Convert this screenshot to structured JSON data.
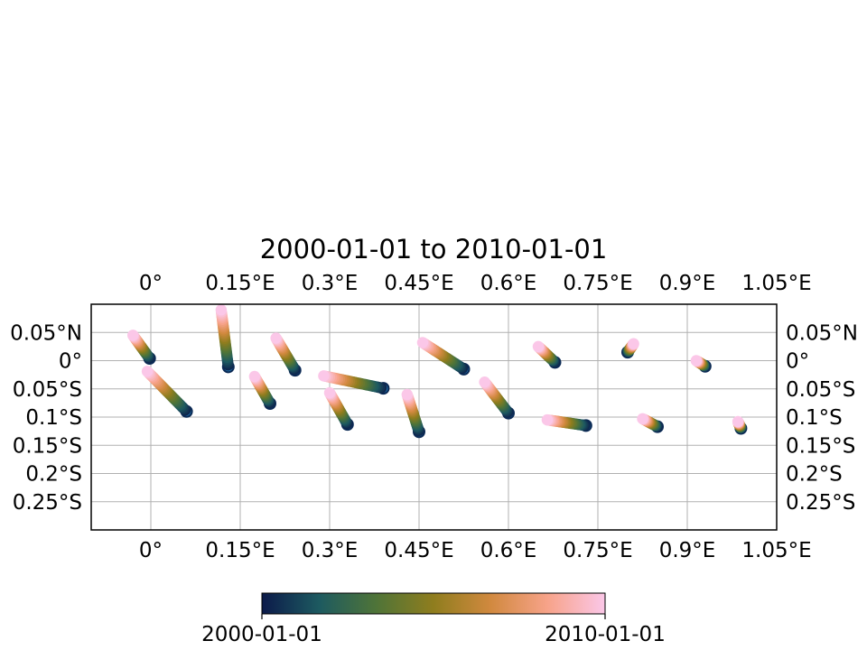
{
  "chart_data": {
    "type": "scatter",
    "title": "2000-01-01 to 2010-01-01",
    "xlabel": "",
    "ylabel": "",
    "xlim": [
      -0.1,
      1.05
    ],
    "ylim": [
      -0.3,
      0.1
    ],
    "grid": true,
    "x_ticks": [
      {
        "value": 0.0,
        "label": "0°"
      },
      {
        "value": 0.15,
        "label": "0.15°E"
      },
      {
        "value": 0.3,
        "label": "0.3°E"
      },
      {
        "value": 0.45,
        "label": "0.45°E"
      },
      {
        "value": 0.6,
        "label": "0.6°E"
      },
      {
        "value": 0.75,
        "label": "0.75°E"
      },
      {
        "value": 0.9,
        "label": "0.9°E"
      },
      {
        "value": 1.05,
        "label": "1.05°E"
      }
    ],
    "y_ticks": [
      {
        "value": 0.05,
        "label": "0.05°N"
      },
      {
        "value": 0.0,
        "label": "0°"
      },
      {
        "value": -0.05,
        "label": "0.05°S"
      },
      {
        "value": -0.1,
        "label": "0.1°S"
      },
      {
        "value": -0.15,
        "label": "0.15°S"
      },
      {
        "value": -0.2,
        "label": "0.2°S"
      },
      {
        "value": -0.25,
        "label": "0.25°S"
      }
    ],
    "colorbar": {
      "colormap": "batlow-like",
      "stops": [
        "#0c1a4a",
        "#1d5a60",
        "#4f7438",
        "#8f7d1e",
        "#d1893f",
        "#f7a38a",
        "#fbc7e8"
      ],
      "min_label": "2000-01-01",
      "max_label": "2010-01-01"
    },
    "marker_edge_color": "#1f4f8a",
    "tracks": [
      {
        "start": [
          -0.002,
          0.004
        ],
        "end": [
          -0.03,
          0.045
        ]
      },
      {
        "start": [
          0.13,
          -0.011
        ],
        "end": [
          0.118,
          0.09
        ]
      },
      {
        "start": [
          0.242,
          -0.017
        ],
        "end": [
          0.21,
          0.04
        ]
      },
      {
        "start": [
          0.06,
          -0.09
        ],
        "end": [
          -0.006,
          -0.019
        ]
      },
      {
        "start": [
          0.2,
          -0.076
        ],
        "end": [
          0.174,
          -0.028
        ]
      },
      {
        "start": [
          0.39,
          -0.049
        ],
        "end": [
          0.29,
          -0.027
        ]
      },
      {
        "start": [
          0.33,
          -0.113
        ],
        "end": [
          0.3,
          -0.057
        ]
      },
      {
        "start": [
          0.45,
          -0.126
        ],
        "end": [
          0.43,
          -0.06
        ]
      },
      {
        "start": [
          0.525,
          -0.015
        ],
        "end": [
          0.456,
          0.032
        ]
      },
      {
        "start": [
          0.6,
          -0.093
        ],
        "end": [
          0.56,
          -0.038
        ]
      },
      {
        "start": [
          0.678,
          -0.003
        ],
        "end": [
          0.65,
          0.025
        ]
      },
      {
        "start": [
          0.73,
          -0.115
        ],
        "end": [
          0.665,
          -0.105
        ]
      },
      {
        "start": [
          0.8,
          0.015
        ],
        "end": [
          0.81,
          0.03
        ]
      },
      {
        "start": [
          0.93,
          -0.01
        ],
        "end": [
          0.915,
          0.0
        ]
      },
      {
        "start": [
          0.85,
          -0.117
        ],
        "end": [
          0.825,
          -0.103
        ]
      },
      {
        "start": [
          0.99,
          -0.12
        ],
        "end": [
          0.985,
          -0.108
        ]
      }
    ]
  }
}
